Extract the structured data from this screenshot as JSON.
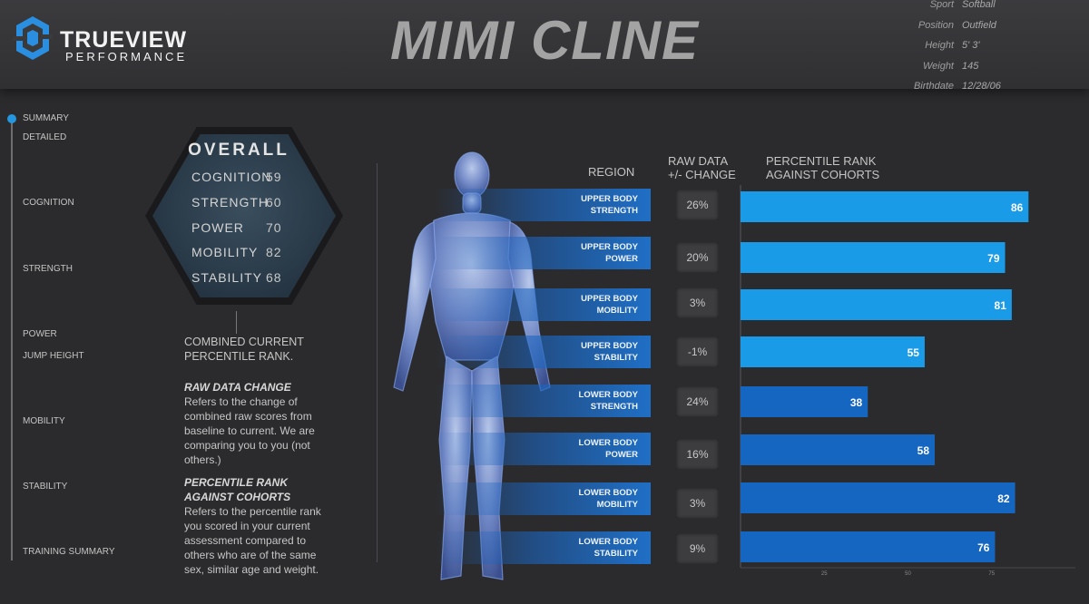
{
  "brand": {
    "name": "TRUEVIEW",
    "sub": "PERFORMANCE"
  },
  "athlete": {
    "name": "MIMI CLINE"
  },
  "info": [
    {
      "label": "Sport",
      "value": "Softball"
    },
    {
      "label": "Position",
      "value": "Outfield"
    },
    {
      "label": "Height",
      "value": "5' 3'"
    },
    {
      "label": "Weight",
      "value": "145"
    },
    {
      "label": "Birthdate",
      "value": "12/28/06"
    }
  ],
  "nav": [
    "SUMMARY",
    "DETAILED",
    "COGNITION",
    "STRENGTH",
    "POWER",
    "JUMP HEIGHT",
    "MOBILITY",
    "STABILITY",
    "TRAINING SUMMARY"
  ],
  "overall": {
    "title": "OVERALL",
    "metrics": [
      {
        "label": "COGNITION",
        "value": "59"
      },
      {
        "label": "STRENGTH",
        "value": "60"
      },
      {
        "label": "POWER",
        "value": "70"
      },
      {
        "label": "MOBILITY",
        "value": "82"
      },
      {
        "label": "STABILITY",
        "value": "68"
      }
    ],
    "caption": "COMBINED CURRENT PERCENTILE RANK."
  },
  "notes": {
    "raw_title": "RAW DATA CHANGE",
    "raw_text": "Refers to the change of combined raw scores  from baseline to current. We are comparing you to you (not others.)",
    "pct_title": "PERCENTILE RANK AGAINST COHORTS",
    "pct_text": "Refers to the percentile rank you scored in your current assessment compared to others  who are of the same sex, similar age and weight."
  },
  "columns": {
    "region": "REGION",
    "raw": "RAW DATA +/- CHANGE",
    "pct": "PERCENTILE RANK AGAINST COHORTS"
  },
  "colors": {
    "upper": "#1a9be8",
    "lower": "#1466c0",
    "accent": "#2596e0"
  },
  "chart_data": {
    "type": "bar",
    "orientation": "horizontal",
    "categories": [
      "UPPER BODY STRENGTH",
      "UPPER BODY POWER",
      "UPPER BODY MOBILITY",
      "UPPER BODY STABILITY",
      "LOWER BODY STRENGTH",
      "LOWER BODY POWER",
      "LOWER BODY MOBILITY",
      "LOWER BODY STABILITY"
    ],
    "labels": [
      [
        "UPPER BODY",
        "STRENGTH"
      ],
      [
        "UPPER BODY",
        "POWER"
      ],
      [
        "UPPER BODY",
        "MOBILITY"
      ],
      [
        "UPPER BODY",
        "STABILITY"
      ],
      [
        "LOWER BODY",
        "STRENGTH"
      ],
      [
        "LOWER BODY",
        "POWER"
      ],
      [
        "LOWER BODY",
        "MOBILITY"
      ],
      [
        "LOWER BODY",
        "STABILITY"
      ]
    ],
    "raw_change": [
      "26%",
      "20%",
      "3%",
      "-1%",
      "24%",
      "16%",
      "3%",
      "9%"
    ],
    "values": [
      86,
      79,
      81,
      55,
      38,
      58,
      82,
      76
    ],
    "xlim": [
      0,
      100
    ],
    "xticks": [
      25,
      50,
      75
    ],
    "title": "",
    "xlabel": "",
    "ylabel": ""
  }
}
